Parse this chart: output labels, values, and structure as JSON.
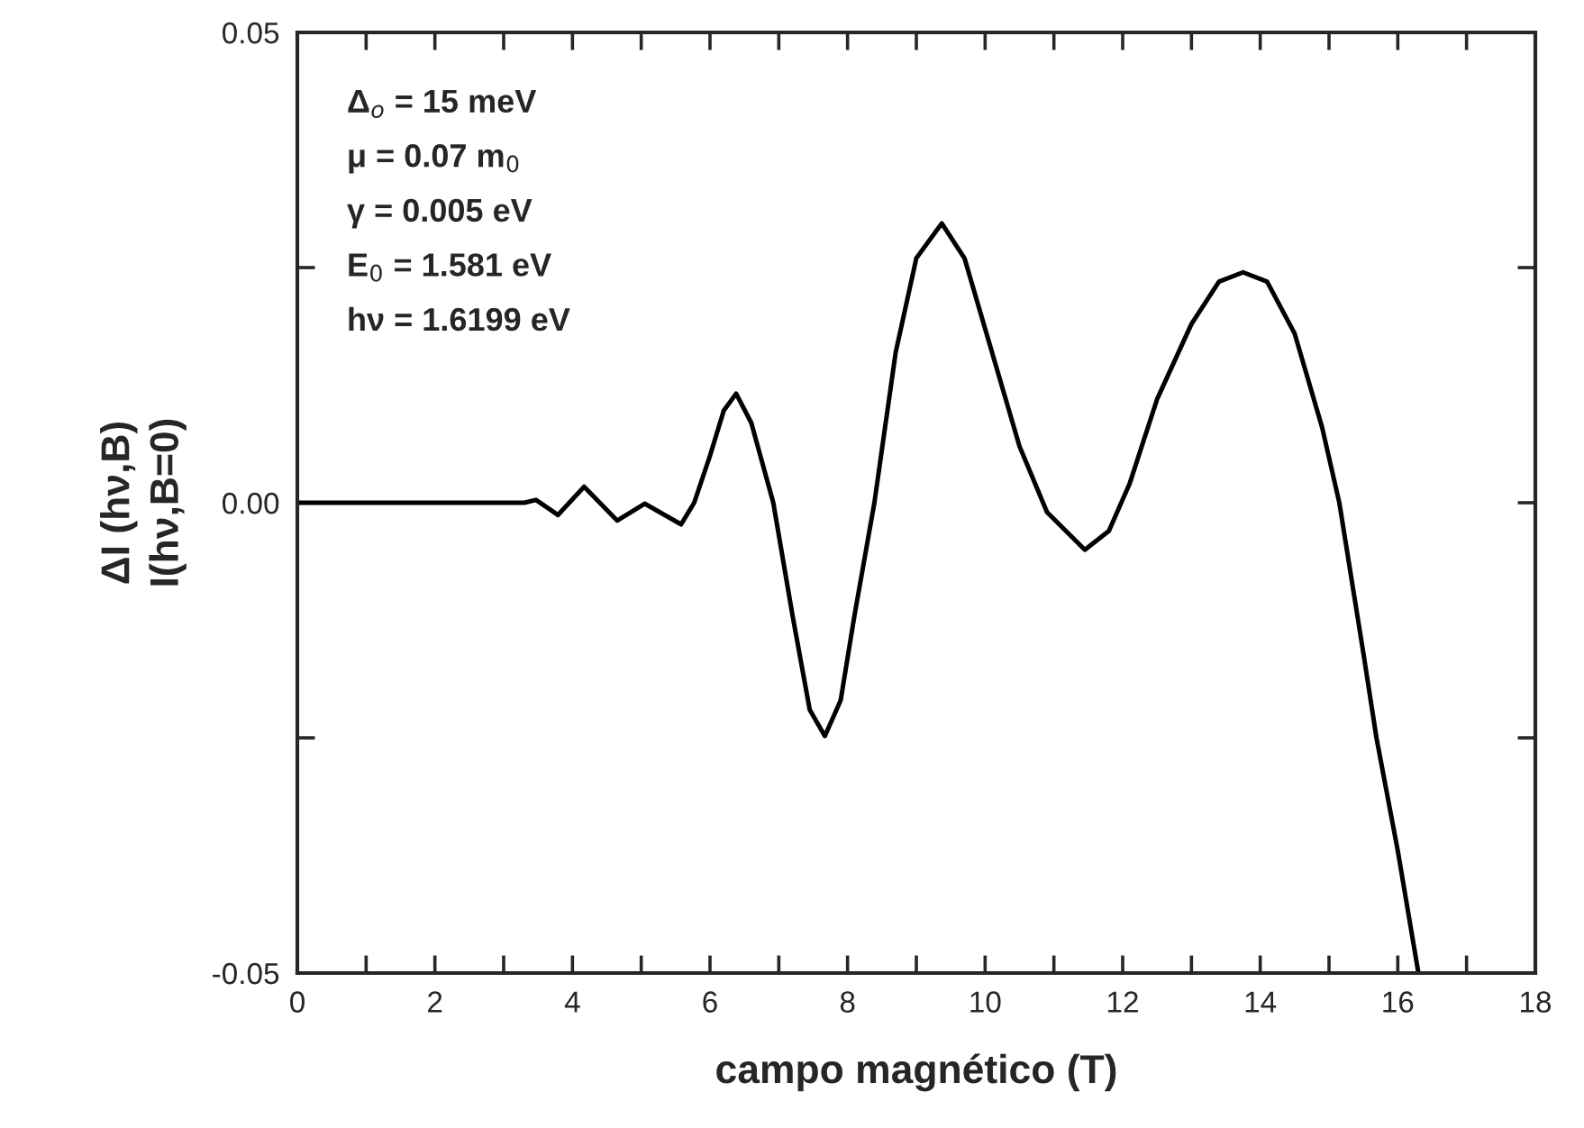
{
  "chart_data": {
    "type": "line",
    "xlabel": "campo magnético (T)",
    "ylabel": "ΔI (hν,B)\nI(hν,B=0)",
    "annotations": [
      "Δ$_{o}$ = 15 meV",
      "μ = 0.07 m$_{0}$",
      "γ = 0.005 eV",
      "E$_{0}$ = 1.581 eV",
      "hν = 1.6199 eV"
    ],
    "xlim": [
      0,
      18
    ],
    "ylim": [
      -0.05,
      0.05
    ],
    "xticks": [
      0,
      {
        "value": 1,
        "label": null
      },
      2,
      {
        "value": 3,
        "label": null
      },
      4,
      {
        "value": 5,
        "label": null
      },
      6,
      {
        "value": 7,
        "label": null
      },
      8,
      {
        "value": 9,
        "label": null
      },
      10,
      {
        "value": 11,
        "label": null
      },
      12,
      {
        "value": 13,
        "label": null
      },
      14,
      {
        "value": 15,
        "label": null
      },
      16,
      {
        "value": 17,
        "label": null
      },
      18
    ],
    "yticks": [
      {
        "value": -0.05,
        "label": "-0.05"
      },
      {
        "value": -0.025,
        "label": null
      },
      {
        "value": 0.0,
        "label": "0.00"
      },
      {
        "value": 0.025,
        "label": null
      },
      {
        "value": 0.05,
        "label": "0.05"
      }
    ],
    "grid": false,
    "marker": "none",
    "line_style": "solid",
    "series": [
      {
        "color": "#000000",
        "x": [
          0,
          3.3,
          3.47,
          3.79,
          4.17,
          4.65,
          5.05,
          5.58,
          5.77,
          6.0,
          6.2,
          6.38,
          6.6,
          6.92,
          7.2,
          7.45,
          7.67,
          7.9,
          8.1,
          8.39,
          8.7,
          9.0,
          9.37,
          9.7,
          10.1,
          10.5,
          10.9,
          11.45,
          11.8,
          12.1,
          12.5,
          13.0,
          13.4,
          13.75,
          14.1,
          14.5,
          14.9,
          15.15,
          15.5,
          15.69,
          16.0,
          16.3
        ],
        "values": [
          0,
          0,
          0.0003,
          -0.0013,
          0.0017,
          -0.0019,
          -0.0001,
          -0.0023,
          0,
          0.005,
          0.0098,
          0.0116,
          0.0085,
          0,
          -0.012,
          -0.022,
          -0.0248,
          -0.021,
          -0.012,
          0,
          0.016,
          0.026,
          0.0297,
          0.026,
          0.016,
          0.006,
          -0.001,
          -0.005,
          -0.003,
          0.002,
          0.011,
          0.019,
          0.0235,
          0.0245,
          0.0235,
          0.018,
          0.008,
          0,
          -0.016,
          -0.025,
          -0.037,
          -0.05
        ]
      }
    ]
  }
}
